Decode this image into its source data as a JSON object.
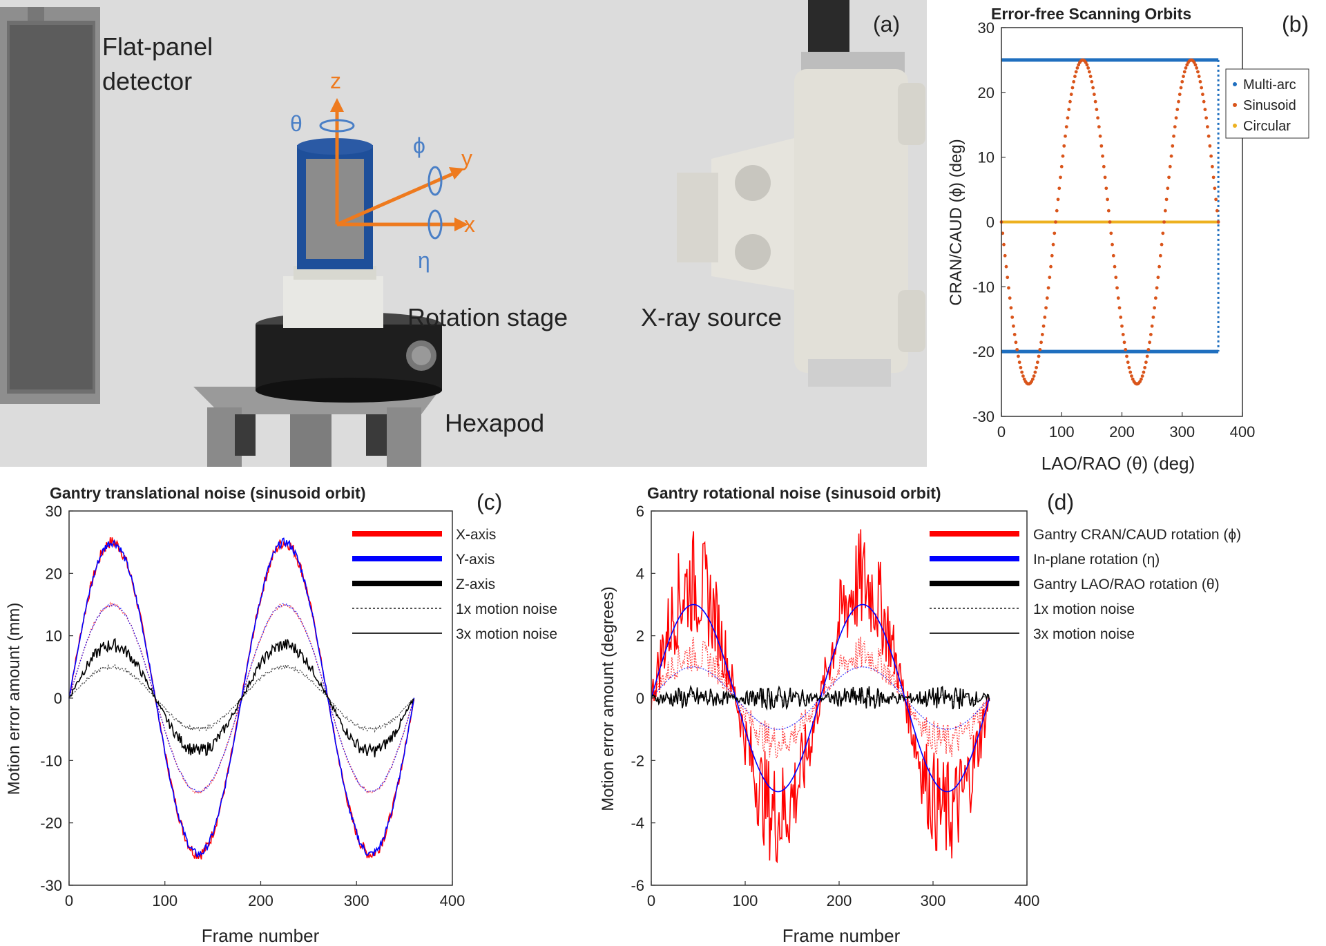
{
  "photo": {
    "panel_label": "(a)",
    "labels": {
      "detector_line1": "Flat-panel",
      "detector_line2": "detector",
      "rotation_stage": "Rotation stage",
      "hexapod": "Hexapod",
      "xray_source": "X-ray source"
    },
    "axes": {
      "z": "z",
      "y": "y",
      "x": "x",
      "theta": "θ",
      "phi": "ϕ",
      "eta": "η"
    }
  },
  "chart_data": [
    {
      "id": "b",
      "panel_label": "(b)",
      "type": "scatter",
      "title": "Error-free Scanning Orbits",
      "xlabel": "LAO/RAO (θ) (deg)",
      "ylabel": "CRAN/CAUD (ϕ) (deg)",
      "xlim": [
        0,
        400
      ],
      "ylim": [
        -30,
        30
      ],
      "xticks": [
        0,
        100,
        200,
        300,
        400
      ],
      "yticks": [
        -30,
        -20,
        -10,
        0,
        10,
        20,
        30
      ],
      "legend_position": "right",
      "series": [
        {
          "name": "Multi-arc",
          "color": "#1f6fbf",
          "description_values": {
            "upper_phi": 25,
            "lower_phi": -20,
            "theta_range": [
              0,
              360
            ],
            "vertical_at_theta": 360
          }
        },
        {
          "name": "Sinusoid",
          "color": "#d9541a",
          "amplitude": 25,
          "period": 180,
          "theta_range": [
            0,
            360
          ]
        },
        {
          "name": "Circular",
          "color": "#edb120",
          "phi": 0,
          "theta_range": [
            0,
            360
          ]
        }
      ]
    },
    {
      "id": "c",
      "panel_label": "(c)",
      "type": "line",
      "title": "Gantry translational noise (sinusoid orbit)",
      "xlabel": "Frame number",
      "ylabel": "Motion error amount (mm)",
      "xlim": [
        0,
        400
      ],
      "ylim": [
        -30,
        30
      ],
      "xticks": [
        0,
        100,
        200,
        300,
        400
      ],
      "yticks": [
        -30,
        -20,
        -10,
        0,
        10,
        20,
        30
      ],
      "legend_position": "top-right",
      "legend": [
        "X-axis",
        "Y-axis",
        "Z-axis",
        "1x motion noise",
        "3x motion noise"
      ],
      "series": [
        {
          "name": "X-axis",
          "color": "#ff0000",
          "amplitude_3x": 25,
          "amplitude_1x": 15,
          "noise_3x": 0.9
        },
        {
          "name": "Y-axis",
          "color": "#0000ff",
          "amplitude_3x": 25,
          "amplitude_1x": 15,
          "noise_3x": 0.6
        },
        {
          "name": "Z-axis",
          "color": "#000000",
          "amplitude_3x": 8.5,
          "amplitude_1x": 5,
          "noise_3x": 1.0
        }
      ],
      "frames": [
        0,
        360
      ],
      "period": 180
    },
    {
      "id": "d",
      "panel_label": "(d)",
      "type": "line",
      "title": "Gantry rotational noise (sinusoid orbit)",
      "xlabel": "Frame number",
      "ylabel": "Motion error amount (degrees)",
      "xlim": [
        0,
        400
      ],
      "ylim": [
        -6,
        6
      ],
      "xticks": [
        0,
        100,
        200,
        300,
        400
      ],
      "yticks": [
        -6,
        -4,
        -2,
        0,
        2,
        4,
        6
      ],
      "legend_position": "top-right",
      "legend": [
        "Gantry CRAN/CAUD rotation (ϕ)",
        "In-plane rotation (η)",
        "Gantry LAO/RAO rotation (θ)",
        "1x motion noise",
        "3x motion noise"
      ],
      "series": [
        {
          "name": "Gantry CRAN/CAUD rotation (ϕ)",
          "color": "#ff0000",
          "amplitude_3x": 3.7,
          "amplitude_1x": 1.4,
          "noise_3x": 1.6
        },
        {
          "name": "In-plane rotation (η)",
          "color": "#0000ff",
          "amplitude_3x": 3,
          "amplitude_1x": 1,
          "noise_3x": 0
        },
        {
          "name": "Gantry LAO/RAO rotation (θ)",
          "color": "#000000",
          "amplitude_3x": 0,
          "amplitude_1x": 0,
          "noise_3x": 0.35
        }
      ],
      "frames": [
        0,
        360
      ],
      "period": 180
    }
  ]
}
